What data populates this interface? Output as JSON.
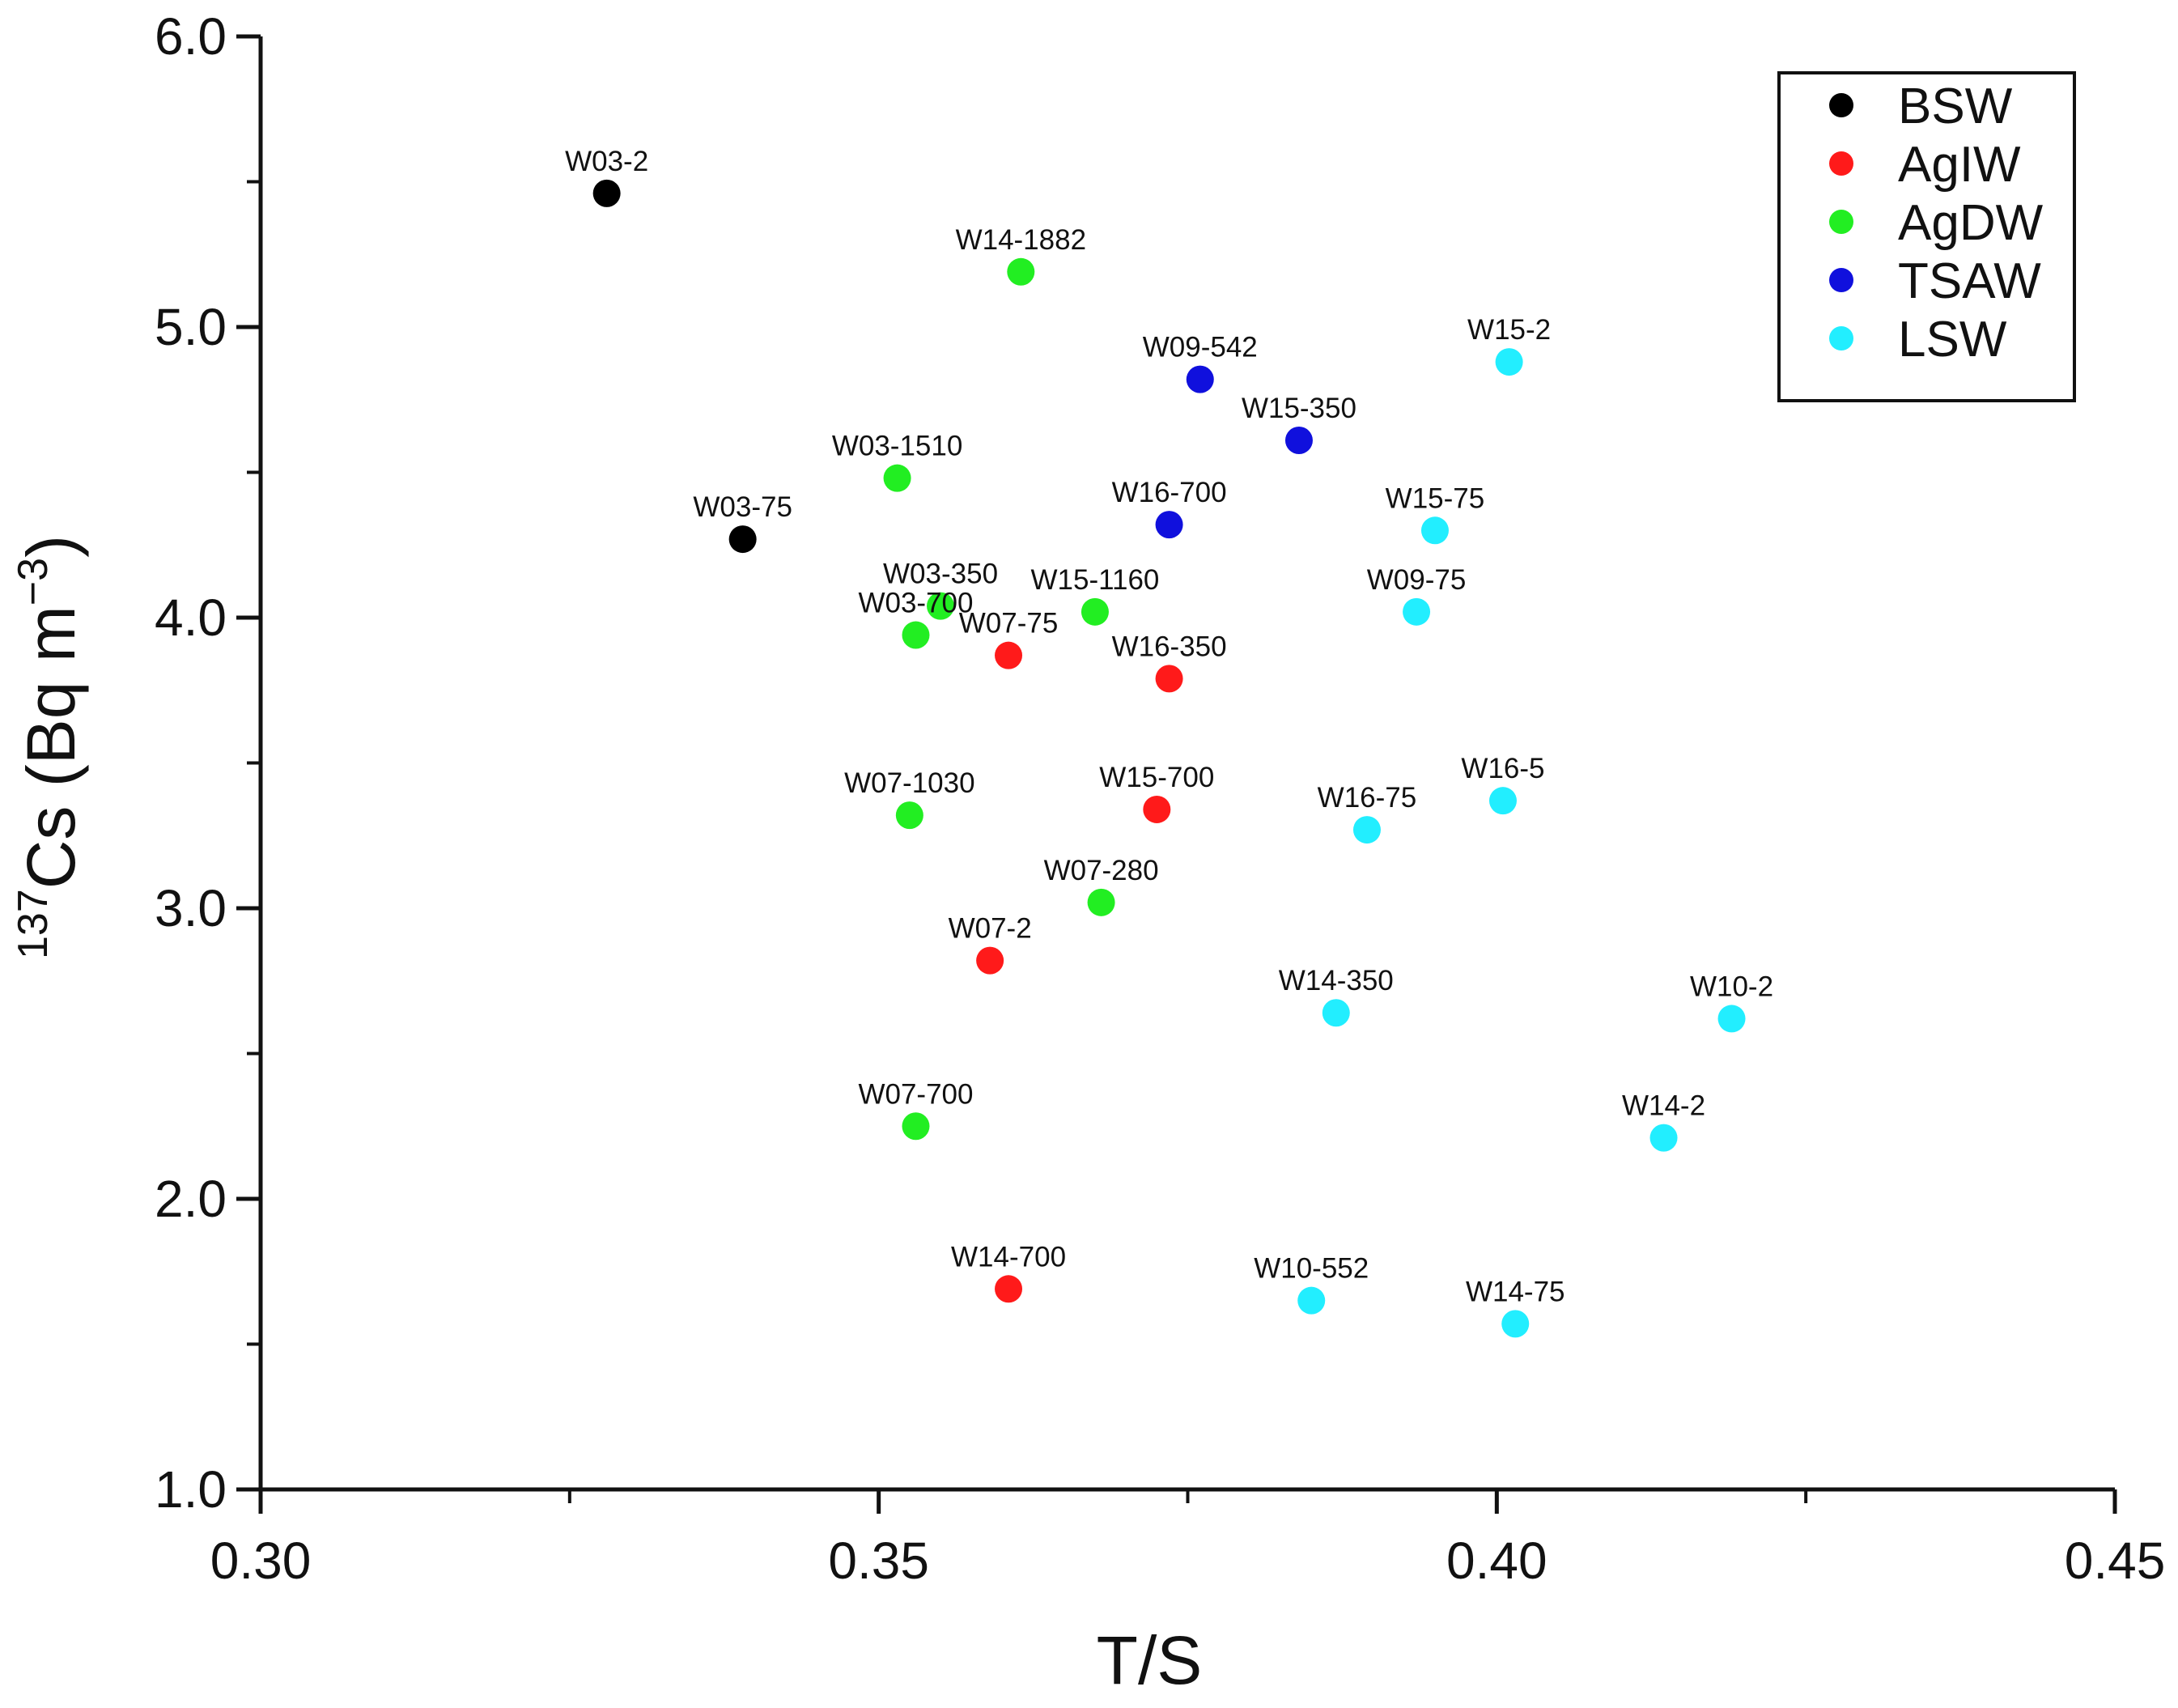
{
  "chart_data": {
    "type": "scatter",
    "title": "",
    "xlabel": "T/S",
    "ylabel_sup": "137",
    "ylabel_main": "Cs (Bq m",
    "ylabel_unit_sup": "−3",
    "ylabel_close": ")",
    "xlim": [
      0.3,
      0.45
    ],
    "ylim": [
      1.0,
      6.0
    ],
    "x_ticks": [
      {
        "value": 0.3,
        "label": "0.30"
      },
      {
        "value": 0.35,
        "label": "0.35"
      },
      {
        "value": 0.4,
        "label": "0.40"
      },
      {
        "value": 0.45,
        "label": "0.45"
      }
    ],
    "x_minor_ticks": [
      0.325,
      0.375,
      0.425
    ],
    "y_ticks": [
      {
        "value": 1.0,
        "label": "1.0"
      },
      {
        "value": 2.0,
        "label": "2.0"
      },
      {
        "value": 3.0,
        "label": "3.0"
      },
      {
        "value": 4.0,
        "label": "4.0"
      },
      {
        "value": 5.0,
        "label": "5.0"
      },
      {
        "value": 6.0,
        "label": "6.0"
      }
    ],
    "y_minor_ticks": [
      1.5,
      2.5,
      3.5,
      4.5,
      5.5
    ],
    "legend_position": "top-right",
    "series": [
      {
        "name": "BSW",
        "color": "#000000",
        "points": [
          {
            "x": 0.328,
            "y": 5.46,
            "label": "W03-2"
          },
          {
            "x": 0.339,
            "y": 4.27,
            "label": "W03-75"
          }
        ]
      },
      {
        "name": "AgIW",
        "color": "#ff1a1a",
        "points": [
          {
            "x": 0.3605,
            "y": 3.87,
            "label": "W07-75"
          },
          {
            "x": 0.3735,
            "y": 3.79,
            "label": "W16-350"
          },
          {
            "x": 0.3725,
            "y": 3.34,
            "label": "W15-700"
          },
          {
            "x": 0.359,
            "y": 2.82,
            "label": "W07-2"
          },
          {
            "x": 0.3605,
            "y": 1.69,
            "label": "W14-700"
          }
        ]
      },
      {
        "name": "AgDW",
        "color": "#22ee22",
        "points": [
          {
            "x": 0.3615,
            "y": 5.19,
            "label": "W14-1882"
          },
          {
            "x": 0.3515,
            "y": 4.48,
            "label": "W03-1510"
          },
          {
            "x": 0.355,
            "y": 4.04,
            "label": "W03-350"
          },
          {
            "x": 0.353,
            "y": 3.94,
            "label": "W03-700"
          },
          {
            "x": 0.3675,
            "y": 4.02,
            "label": "W15-1160"
          },
          {
            "x": 0.3525,
            "y": 3.32,
            "label": "W07-1030"
          },
          {
            "x": 0.368,
            "y": 3.02,
            "label": "W07-280"
          },
          {
            "x": 0.353,
            "y": 2.25,
            "label": "W07-700"
          }
        ]
      },
      {
        "name": "TSAW",
        "color": "#1010dd",
        "points": [
          {
            "x": 0.376,
            "y": 4.82,
            "label": "W09-542"
          },
          {
            "x": 0.384,
            "y": 4.61,
            "label": "W15-350"
          },
          {
            "x": 0.3735,
            "y": 4.32,
            "label": "W16-700"
          }
        ]
      },
      {
        "name": "LSW",
        "color": "#22eeff",
        "points": [
          {
            "x": 0.401,
            "y": 4.88,
            "label": "W15-2"
          },
          {
            "x": 0.395,
            "y": 4.3,
            "label": "W15-75"
          },
          {
            "x": 0.3935,
            "y": 4.02,
            "label": "W09-75"
          },
          {
            "x": 0.4005,
            "y": 3.37,
            "label": "W16-5"
          },
          {
            "x": 0.3895,
            "y": 3.27,
            "label": "W16-75"
          },
          {
            "x": 0.387,
            "y": 2.64,
            "label": "W14-350"
          },
          {
            "x": 0.419,
            "y": 2.62,
            "label": "W10-2"
          },
          {
            "x": 0.4135,
            "y": 2.21,
            "label": "W14-2"
          },
          {
            "x": 0.385,
            "y": 1.65,
            "label": "W10-552"
          },
          {
            "x": 0.4015,
            "y": 1.57,
            "label": "W14-75"
          }
        ]
      }
    ]
  }
}
